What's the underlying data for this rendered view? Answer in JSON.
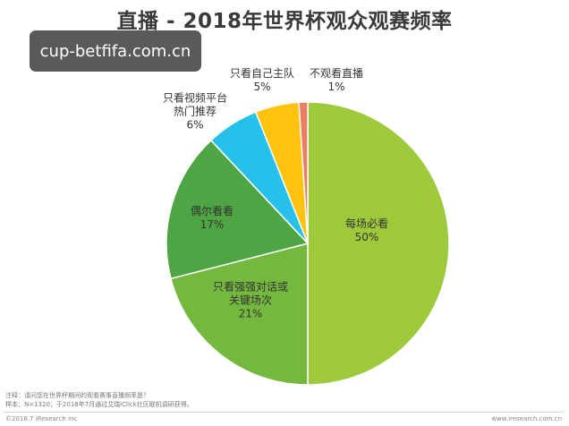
{
  "title": "直播 - 2018年世界杯观众观赛频率",
  "watermark": "cup-betfifa.com.cn",
  "chart_data": {
    "type": "pie",
    "start_angle_deg": 0,
    "direction": "clockwise",
    "slices": [
      {
        "label": [
          "每场必看"
        ],
        "value": 50,
        "value_label": "50%",
        "color": "#9dc93a"
      },
      {
        "label": [
          "只看强强对话或",
          "关键场次"
        ],
        "value": 21,
        "value_label": "21%",
        "color": "#74b83f"
      },
      {
        "label": [
          "偶尔看看"
        ],
        "value": 17,
        "value_label": "17%",
        "color": "#4fa543"
      },
      {
        "label": [
          "只看视频平台",
          "热门推荐"
        ],
        "value": 6,
        "value_label": "6%",
        "color": "#27c0ea"
      },
      {
        "label": [
          "只看自己主队"
        ],
        "value": 5,
        "value_label": "5%",
        "color": "#ffc20e"
      },
      {
        "label": [
          "不观看直播"
        ],
        "value": 1,
        "value_label": "1%",
        "color": "#ec7d64"
      }
    ]
  },
  "notes": {
    "line1": "注释：请问您在世界杯期间的观看赛事直播频率是？",
    "line2": "样本：N=1320；于2018年7月通过艾瑞iClick社区联机调研获得。"
  },
  "footer": {
    "copyright": "©2018.7 iResearch Inc",
    "url": "www.iresearch.com.cn"
  }
}
